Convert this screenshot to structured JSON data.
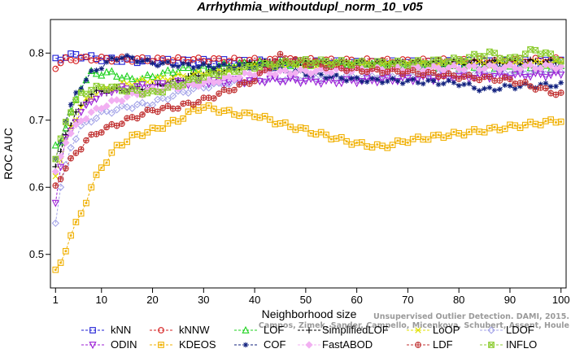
{
  "chart_data": {
    "type": "line",
    "title": "Arrhythmia_withoutdupl_norm_10_v05",
    "xlabel": "Neighborhood size",
    "ylabel": "ROC AUC",
    "xlim": [
      0,
      101
    ],
    "ylim": [
      0.45,
      0.85
    ],
    "xticks": [
      1,
      10,
      20,
      30,
      40,
      50,
      60,
      70,
      80,
      90,
      100
    ],
    "yticks": [
      0.5,
      0.6,
      0.7,
      0.8
    ],
    "grid": false,
    "legend_position": "bottom",
    "credit_line1": "Unsupervised Outlier Detection. DAMI, 2015.",
    "credit_line2": "Campos, Zimek, Sander, Campello, Micenkova, Schubert, Assent, Houle",
    "series": [
      {
        "name": "kNN",
        "color": "#1f1fd6",
        "marker": "square",
        "keys": [
          [
            1,
            0.79
          ],
          [
            3,
            0.795
          ],
          [
            5,
            0.797
          ],
          [
            8,
            0.793
          ],
          [
            12,
            0.79
          ],
          [
            20,
            0.788
          ],
          [
            40,
            0.787
          ],
          [
            60,
            0.785
          ],
          [
            80,
            0.786
          ],
          [
            100,
            0.787
          ]
        ]
      },
      {
        "name": "kNNW",
        "color": "#d62020",
        "marker": "circle",
        "keys": [
          [
            1,
            0.78
          ],
          [
            3,
            0.79
          ],
          [
            6,
            0.792
          ],
          [
            12,
            0.791
          ],
          [
            25,
            0.79
          ],
          [
            45,
            0.789
          ],
          [
            70,
            0.788
          ],
          [
            100,
            0.79
          ]
        ]
      },
      {
        "name": "LOF",
        "color": "#1fd21f",
        "marker": "triangle",
        "keys": [
          [
            1,
            0.66
          ],
          [
            2,
            0.67
          ],
          [
            4,
            0.71
          ],
          [
            6,
            0.75
          ],
          [
            8,
            0.77
          ],
          [
            12,
            0.77
          ],
          [
            16,
            0.76
          ],
          [
            20,
            0.765
          ],
          [
            25,
            0.775
          ],
          [
            30,
            0.778
          ],
          [
            40,
            0.785
          ],
          [
            60,
            0.782
          ],
          [
            80,
            0.78
          ],
          [
            100,
            0.778
          ]
        ]
      },
      {
        "name": "SimplifiedLOF",
        "color": "#000000",
        "marker": "plus",
        "keys": [
          [
            1,
            0.63
          ],
          [
            2,
            0.65
          ],
          [
            3,
            0.68
          ],
          [
            5,
            0.71
          ],
          [
            8,
            0.74
          ],
          [
            12,
            0.745
          ],
          [
            15,
            0.745
          ],
          [
            20,
            0.75
          ],
          [
            25,
            0.76
          ],
          [
            30,
            0.77
          ],
          [
            35,
            0.775
          ],
          [
            40,
            0.785
          ],
          [
            60,
            0.785
          ],
          [
            80,
            0.786
          ],
          [
            100,
            0.787
          ]
        ]
      },
      {
        "name": "LoOP",
        "color": "#e0e000",
        "marker": "x",
        "keys": [
          [
            1,
            0.62
          ],
          [
            2,
            0.64
          ],
          [
            4,
            0.69
          ],
          [
            7,
            0.73
          ],
          [
            10,
            0.745
          ],
          [
            15,
            0.755
          ],
          [
            20,
            0.76
          ],
          [
            30,
            0.77
          ],
          [
            40,
            0.78
          ],
          [
            60,
            0.782
          ],
          [
            80,
            0.784
          ],
          [
            100,
            0.785
          ]
        ]
      },
      {
        "name": "LDOF",
        "color": "#a4a4e8",
        "marker": "diamond",
        "keys": [
          [
            1,
            0.55
          ],
          [
            2,
            0.6
          ],
          [
            4,
            0.66
          ],
          [
            6,
            0.69
          ],
          [
            8,
            0.7
          ],
          [
            10,
            0.71
          ],
          [
            15,
            0.72
          ],
          [
            20,
            0.725
          ],
          [
            25,
            0.74
          ],
          [
            30,
            0.75
          ],
          [
            40,
            0.76
          ],
          [
            60,
            0.765
          ],
          [
            80,
            0.77
          ],
          [
            100,
            0.772
          ]
        ]
      },
      {
        "name": "ODIN",
        "color": "#9c1fd6",
        "marker": "triangle-down",
        "keys": [
          [
            1,
            0.58
          ],
          [
            2,
            0.63
          ],
          [
            3,
            0.67
          ],
          [
            5,
            0.7
          ],
          [
            8,
            0.73
          ],
          [
            12,
            0.745
          ],
          [
            18,
            0.75
          ],
          [
            25,
            0.755
          ],
          [
            35,
            0.758
          ],
          [
            45,
            0.76
          ],
          [
            55,
            0.757
          ],
          [
            65,
            0.76
          ],
          [
            75,
            0.762
          ],
          [
            85,
            0.765
          ],
          [
            100,
            0.768
          ]
        ]
      },
      {
        "name": "KDEOS",
        "color": "#f0b000",
        "marker": "boxsquare",
        "keys": [
          [
            1,
            0.475
          ],
          [
            2,
            0.485
          ],
          [
            4,
            0.53
          ],
          [
            6,
            0.56
          ],
          [
            8,
            0.6
          ],
          [
            10,
            0.63
          ],
          [
            13,
            0.66
          ],
          [
            16,
            0.675
          ],
          [
            20,
            0.685
          ],
          [
            25,
            0.7
          ],
          [
            28,
            0.715
          ],
          [
            30,
            0.72
          ],
          [
            33,
            0.715
          ],
          [
            36,
            0.71
          ],
          [
            40,
            0.708
          ],
          [
            45,
            0.695
          ],
          [
            50,
            0.685
          ],
          [
            55,
            0.675
          ],
          [
            60,
            0.665
          ],
          [
            65,
            0.66
          ],
          [
            70,
            0.67
          ],
          [
            80,
            0.68
          ],
          [
            90,
            0.69
          ],
          [
            100,
            0.7
          ]
        ]
      },
      {
        "name": "COF",
        "color": "#10207e",
        "marker": "asterisk",
        "keys": [
          [
            1,
            0.64
          ],
          [
            3,
            0.7
          ],
          [
            5,
            0.74
          ],
          [
            8,
            0.77
          ],
          [
            12,
            0.79
          ],
          [
            14,
            0.795
          ],
          [
            20,
            0.785
          ],
          [
            30,
            0.78
          ],
          [
            40,
            0.78
          ],
          [
            50,
            0.77
          ],
          [
            60,
            0.76
          ],
          [
            70,
            0.758
          ],
          [
            80,
            0.755
          ],
          [
            85,
            0.745
          ],
          [
            90,
            0.75
          ],
          [
            100,
            0.753
          ]
        ]
      },
      {
        "name": "FastABOD",
        "color": "#f2b0f2",
        "marker": "diamond-filled",
        "keys": [
          [
            1,
            0.62
          ],
          [
            3,
            0.67
          ],
          [
            6,
            0.7
          ],
          [
            10,
            0.72
          ],
          [
            15,
            0.735
          ],
          [
            20,
            0.745
          ],
          [
            30,
            0.755
          ],
          [
            40,
            0.77
          ],
          [
            60,
            0.775
          ],
          [
            80,
            0.778
          ],
          [
            100,
            0.78
          ]
        ]
      },
      {
        "name": "LDF",
        "color": "#c03030",
        "marker": "circle-plus",
        "keys": [
          [
            1,
            0.6
          ],
          [
            3,
            0.63
          ],
          [
            5,
            0.65
          ],
          [
            7,
            0.67
          ],
          [
            10,
            0.685
          ],
          [
            15,
            0.7
          ],
          [
            20,
            0.715
          ],
          [
            25,
            0.72
          ],
          [
            30,
            0.73
          ],
          [
            35,
            0.745
          ],
          [
            40,
            0.76
          ],
          [
            45,
            0.795
          ],
          [
            50,
            0.785
          ],
          [
            60,
            0.775
          ],
          [
            70,
            0.772
          ],
          [
            80,
            0.765
          ],
          [
            90,
            0.76
          ],
          [
            100,
            0.738
          ]
        ]
      },
      {
        "name": "INFLO",
        "color": "#8ccc30",
        "marker": "square-x",
        "keys": [
          [
            1,
            0.64
          ],
          [
            3,
            0.7
          ],
          [
            6,
            0.74
          ],
          [
            10,
            0.75
          ],
          [
            15,
            0.745
          ],
          [
            20,
            0.74
          ],
          [
            30,
            0.765
          ],
          [
            40,
            0.78
          ],
          [
            50,
            0.788
          ],
          [
            60,
            0.785
          ],
          [
            70,
            0.785
          ],
          [
            80,
            0.79
          ],
          [
            86,
            0.8
          ],
          [
            90,
            0.79
          ],
          [
            95,
            0.805
          ],
          [
            100,
            0.79
          ]
        ]
      }
    ]
  }
}
